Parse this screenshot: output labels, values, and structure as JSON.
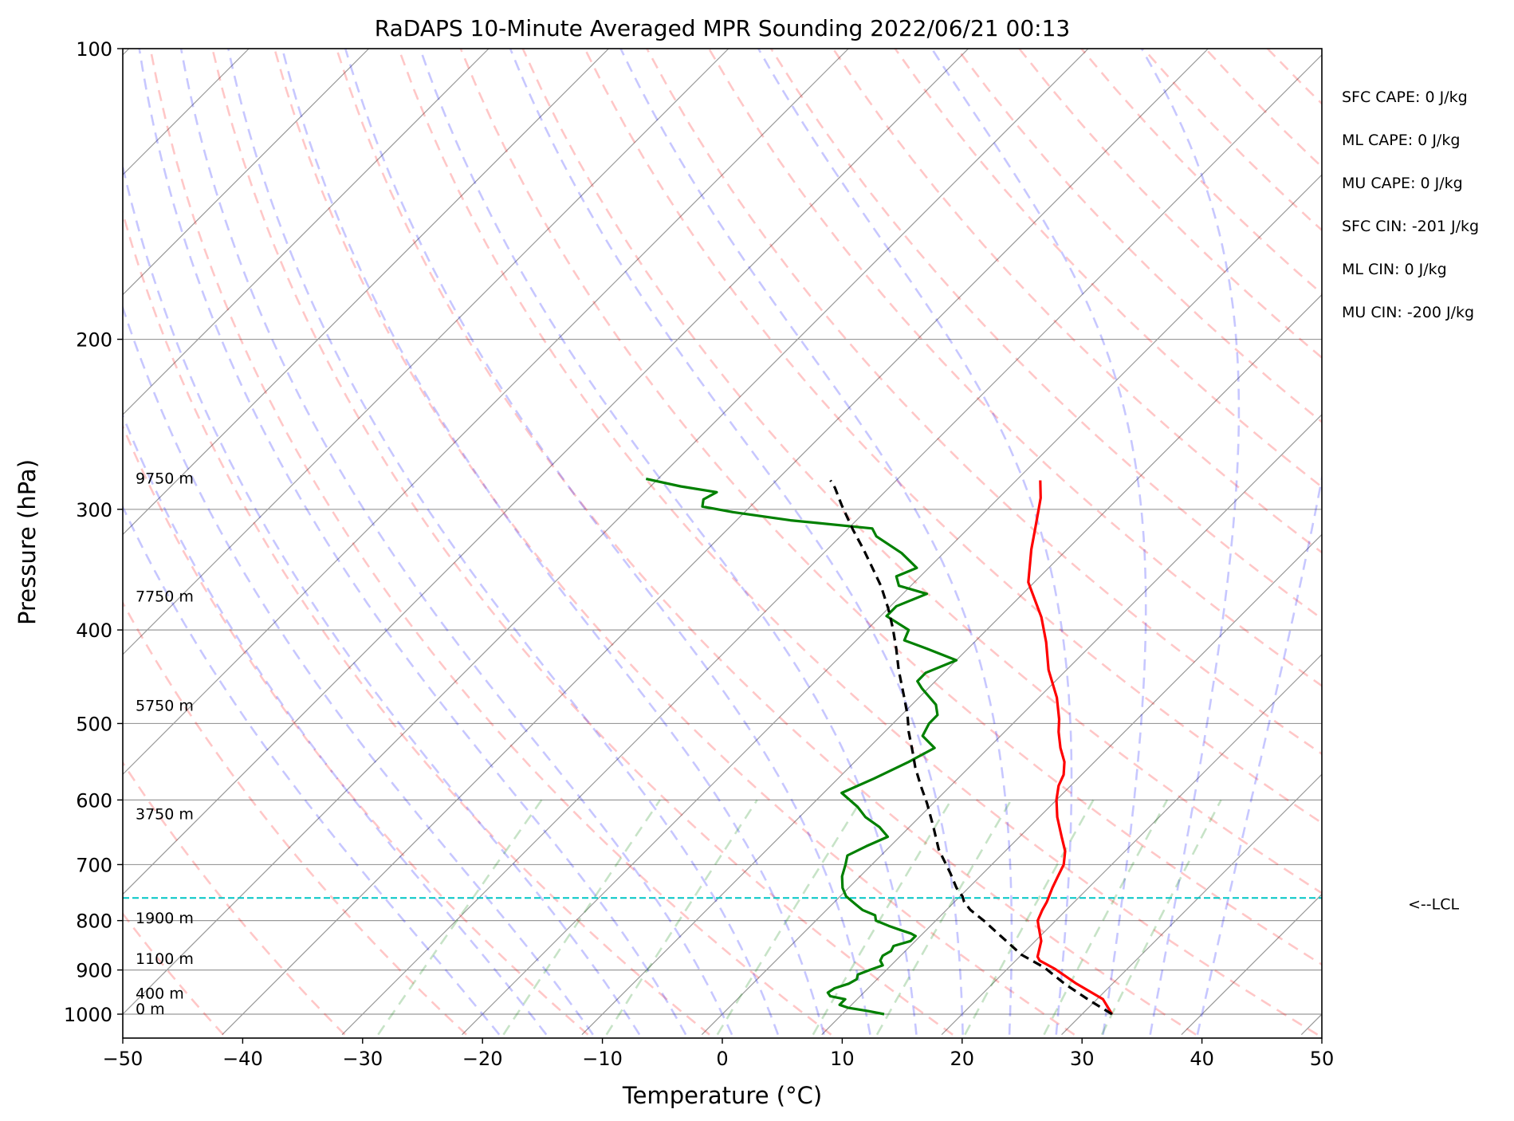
{
  "chart_data": {
    "type": "line",
    "title": "RaDAPS 10-Minute Averaged MPR Sounding 2022/06/21 00:13",
    "xlabel": "Temperature (°C)",
    "ylabel": "Pressure (hPa)",
    "xlim": [
      -50,
      50
    ],
    "ylim_pressure": [
      1050,
      100
    ],
    "y_scale": "log",
    "x_ticks": [
      "−50",
      "−40",
      "−30",
      "−20",
      "−10",
      "0",
      "10",
      "20",
      "30",
      "40",
      "50"
    ],
    "y_ticks": [
      {
        "p": 100,
        "label": "100"
      },
      {
        "p": 200,
        "label": "200"
      },
      {
        "p": 300,
        "label": "300"
      },
      {
        "p": 400,
        "label": "400"
      },
      {
        "p": 500,
        "label": "500"
      },
      {
        "p": 600,
        "label": "600"
      },
      {
        "p": 700,
        "label": "700"
      },
      {
        "p": 800,
        "label": "800"
      },
      {
        "p": 900,
        "label": "900"
      },
      {
        "p": 1000,
        "label": "1000"
      }
    ],
    "grid": true,
    "series": [
      {
        "color": "#ff0000",
        "points": [
          [
            32.5,
            1000
          ],
          [
            30.5,
            965
          ],
          [
            27,
            930
          ],
          [
            24,
            898
          ],
          [
            22,
            880
          ],
          [
            21.5,
            872
          ],
          [
            20.5,
            840
          ],
          [
            19,
            810
          ],
          [
            18.5,
            800
          ],
          [
            18,
            780
          ],
          [
            17.7,
            765
          ],
          [
            17,
            740
          ],
          [
            16.5,
            720
          ],
          [
            16,
            700
          ],
          [
            15,
            678
          ],
          [
            13.5,
            655
          ],
          [
            11.5,
            625
          ],
          [
            10,
            600
          ],
          [
            9,
            580
          ],
          [
            8.5,
            565
          ],
          [
            7.5,
            548
          ],
          [
            6,
            530
          ],
          [
            4.5,
            510
          ],
          [
            3.5,
            495
          ],
          [
            1.5,
            470
          ],
          [
            -1.5,
            440
          ],
          [
            -4,
            412
          ],
          [
            -6.5,
            388
          ],
          [
            -10.5,
            357
          ],
          [
            -13,
            330
          ],
          [
            -14.5,
            313
          ],
          [
            -16.5,
            292
          ],
          [
            -18,
            280
          ]
        ]
      },
      {
        "color": "#008000",
        "points": [
          [
            13.5,
            1000
          ],
          [
            12,
            993
          ],
          [
            10,
            985
          ],
          [
            9,
            978
          ],
          [
            9,
            965
          ],
          [
            7.5,
            958
          ],
          [
            7,
            950
          ],
          [
            7.2,
            940
          ],
          [
            8,
            930
          ],
          [
            8.3,
            920
          ],
          [
            8,
            910
          ],
          [
            8.6,
            900
          ],
          [
            9.3,
            890
          ],
          [
            8.7,
            880
          ],
          [
            8.5,
            870
          ],
          [
            8.8,
            860
          ],
          [
            8.6,
            850
          ],
          [
            9.6,
            840
          ],
          [
            9.6,
            830
          ],
          [
            9,
            825
          ],
          [
            7.8,
            818
          ],
          [
            6.5,
            810
          ],
          [
            5,
            800
          ],
          [
            4.5,
            790
          ],
          [
            3,
            780
          ],
          [
            2,
            770
          ],
          [
            0.5,
            755
          ],
          [
            -0.5,
            740
          ],
          [
            -1.5,
            720
          ],
          [
            -2.2,
            700
          ],
          [
            -2.8,
            685
          ],
          [
            -2,
            670
          ],
          [
            -1,
            655
          ],
          [
            -2.5,
            640
          ],
          [
            -4.5,
            625
          ],
          [
            -6,
            610
          ],
          [
            -8.5,
            590
          ],
          [
            -7,
            570
          ],
          [
            -5.5,
            548
          ],
          [
            -4.5,
            530
          ],
          [
            -6.5,
            515
          ],
          [
            -7,
            500
          ],
          [
            -7,
            490
          ],
          [
            -8,
            478
          ],
          [
            -10.5,
            460
          ],
          [
            -11.5,
            452
          ],
          [
            -11.5,
            443
          ],
          [
            -10,
            430
          ],
          [
            -13.5,
            418
          ],
          [
            -16,
            410
          ],
          [
            -16.5,
            400
          ],
          [
            -19.5,
            387
          ],
          [
            -19.5,
            378
          ],
          [
            -18,
            367
          ],
          [
            -21,
            360
          ],
          [
            -22,
            352
          ],
          [
            -21,
            345
          ],
          [
            -23.5,
            333
          ],
          [
            -27,
            320
          ],
          [
            -28,
            314
          ],
          [
            -35.5,
            308
          ],
          [
            -41,
            302
          ],
          [
            -44,
            298
          ],
          [
            -44.5,
            293
          ],
          [
            -44,
            288
          ],
          [
            -47.5,
            284
          ],
          [
            -51,
            279
          ]
        ]
      },
      {
        "color": "#000000",
        "dashed": true,
        "points": [
          [
            32.5,
            1000
          ],
          [
            29.5,
            968
          ],
          [
            26,
            930
          ],
          [
            23,
            895
          ],
          [
            20,
            868
          ],
          [
            16.7,
            830
          ],
          [
            14,
            800
          ],
          [
            12,
            780
          ],
          [
            10.8,
            765
          ],
          [
            10.2,
            755
          ],
          [
            9,
            740
          ],
          [
            7.3,
            715
          ],
          [
            4.3,
            675
          ],
          [
            2,
            640
          ],
          [
            -0.5,
            605
          ],
          [
            -2.5,
            580
          ],
          [
            -4.5,
            555
          ],
          [
            -6,
            535
          ],
          [
            -8,
            510
          ],
          [
            -9.5,
            490
          ],
          [
            -11.5,
            467
          ],
          [
            -14,
            440
          ],
          [
            -16,
            418
          ],
          [
            -18,
            398
          ],
          [
            -20,
            380
          ],
          [
            -22.5,
            360
          ],
          [
            -25,
            343
          ],
          [
            -27,
            330
          ],
          [
            -29.5,
            315
          ],
          [
            -32.5,
            297
          ],
          [
            -34.5,
            285
          ],
          [
            -35.5,
            280
          ]
        ]
      }
    ],
    "height_labels": [
      {
        "p": 282,
        "text": "9750 m"
      },
      {
        "p": 374,
        "text": "7750 m"
      },
      {
        "p": 485,
        "text": "5750 m"
      },
      {
        "p": 628,
        "text": "3750 m"
      },
      {
        "p": 805,
        "text": "1900 m"
      },
      {
        "p": 887,
        "text": "1100 m"
      },
      {
        "p": 964,
        "text": "400 m"
      },
      {
        "p": 1000,
        "text": "0 m"
      }
    ],
    "lcl": {
      "p": 758,
      "label": "<--LCL",
      "color": "#00c5c5"
    },
    "indices": [
      "SFC CAPE: 0 J/kg",
      "ML CAPE: 0 J/kg",
      "MU CAPE: 0 J/kg",
      "SFC CIN: -201 J/kg",
      "ML CIN: 0 J/kg",
      "MU CIN: -200 J/kg"
    ],
    "background_lines": {
      "isotherm_color": "#999999",
      "dry_adiabat_color": "#ff0000",
      "moist_adiabat_color": "#0000ff",
      "mixing_ratio_color": "#008000"
    }
  }
}
